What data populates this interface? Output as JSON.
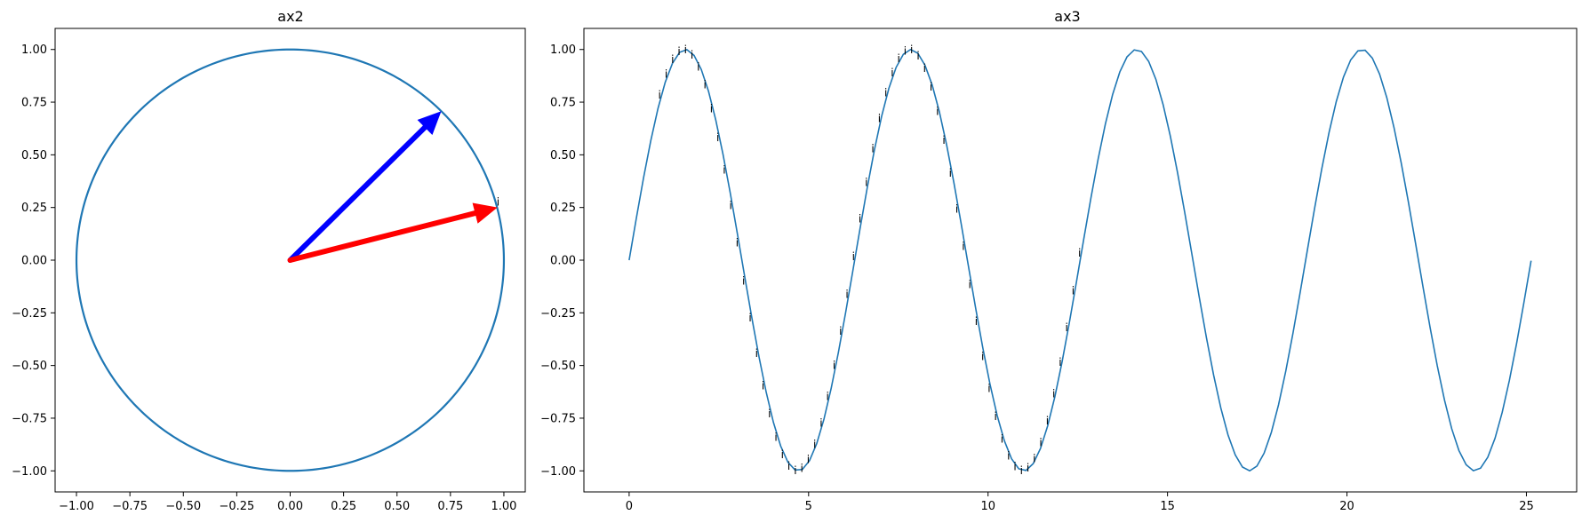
{
  "chart_data": [
    {
      "title": "ax2",
      "type": "line",
      "xlim": [
        -1.1,
        1.1
      ],
      "ylim": [
        -1.1,
        1.1
      ],
      "xticks": [
        -1.0,
        -0.75,
        -0.5,
        -0.25,
        0.0,
        0.25,
        0.5,
        0.75,
        1.0
      ],
      "xtick_labels": [
        "−1.00",
        "−0.75",
        "−0.50",
        "−0.25",
        "0.00",
        "0.25",
        "0.50",
        "0.75",
        "1.00"
      ],
      "yticks": [
        -1.0,
        -0.75,
        -0.5,
        -0.25,
        0.0,
        0.25,
        0.5,
        0.75,
        1.0
      ],
      "ytick_labels": [
        "−1.00",
        "−0.75",
        "−0.50",
        "−0.25",
        "0.00",
        "0.25",
        "0.50",
        "0.75",
        "1.00"
      ],
      "series": [
        {
          "kind": "circle",
          "center": [
            0,
            0
          ],
          "radius": 1,
          "color": "#1f77b4"
        }
      ],
      "arrows": [
        {
          "from": [
            0,
            0
          ],
          "to": [
            0.707,
            0.707
          ],
          "color": "#0000ff"
        },
        {
          "from": [
            0,
            0
          ],
          "to": [
            0.97,
            0.25
          ],
          "color": "#ff0000"
        }
      ],
      "annotations": [
        {
          "text": "i",
          "x": 0.97,
          "y": 0.25
        }
      ],
      "grid": false
    },
    {
      "title": "ax3",
      "type": "line",
      "xlim": [
        -1.26,
        26.4
      ],
      "ylim": [
        -1.1,
        1.1
      ],
      "xticks": [
        0,
        5,
        10,
        15,
        20,
        25
      ],
      "xtick_labels": [
        "0",
        "5",
        "10",
        "15",
        "20",
        "25"
      ],
      "yticks": [
        -1.0,
        -0.75,
        -0.5,
        -0.25,
        0.0,
        0.25,
        0.5,
        0.75,
        1.0
      ],
      "ytick_labels": [
        "−1.00",
        "−0.75",
        "−0.50",
        "−0.25",
        "0.00",
        "0.25",
        "0.50",
        "0.75",
        "1.00"
      ],
      "series": [
        {
          "kind": "function",
          "fn": "sin",
          "x_range": [
            0,
            25.13
          ],
          "samples": 126,
          "color": "#1f77b4"
        }
      ],
      "markers": {
        "text": "i",
        "x_range": [
          0.9,
          12.6
        ],
        "count": 66
      },
      "grid": false
    }
  ]
}
